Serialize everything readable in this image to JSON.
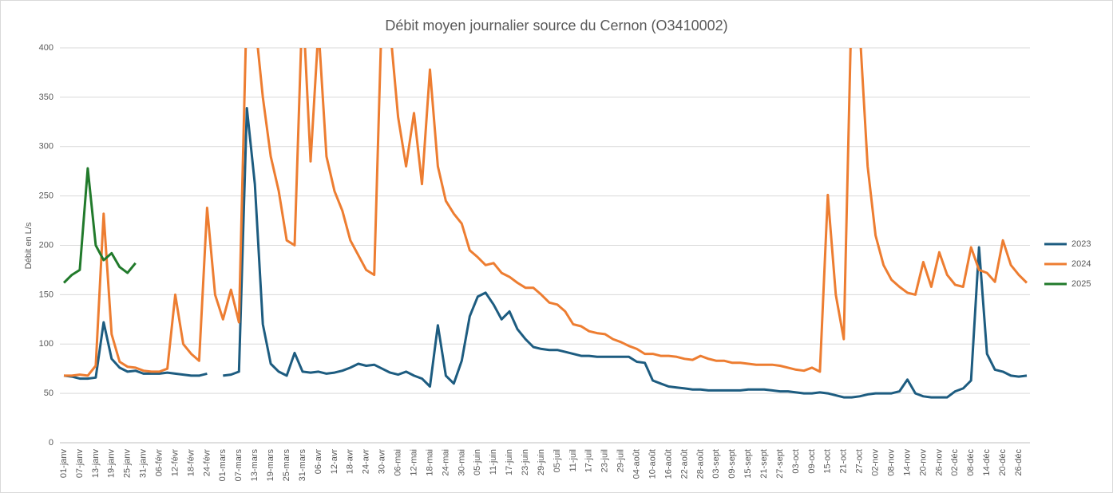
{
  "chart_data": {
    "type": "line",
    "title": "Débit moyen journalier source du Cernon (O3410002)",
    "y_label": "Débit en L/s",
    "categories": [
      "01-janv",
      null,
      "07-janv",
      null,
      "13-janv",
      null,
      "19-janv",
      null,
      "25-janv",
      null,
      "31-janv",
      null,
      "06-févr",
      null,
      "12-févr",
      null,
      "18-févr",
      null,
      "24-févr",
      null,
      "01-mars",
      null,
      "07-mars",
      null,
      "13-mars",
      null,
      "19-mars",
      null,
      "25-mars",
      null,
      "31-mars",
      null,
      "06-avr",
      null,
      "12-avr",
      null,
      "18-avr",
      null,
      "24-avr",
      null,
      "30-avr",
      null,
      "06-mai",
      null,
      "12-mai",
      null,
      "18-mai",
      null,
      "24-mai",
      null,
      "30-mai",
      null,
      "05-juin",
      null,
      "11-juin",
      null,
      "17-juin",
      null,
      "23-juin",
      null,
      "29-juin",
      null,
      "05-juil",
      null,
      "11-juil",
      null,
      "17-juil",
      null,
      "23-juil",
      null,
      "29-juil",
      null,
      "04-août",
      null,
      "10-août",
      null,
      "16-août",
      null,
      "22-août",
      null,
      "28-août",
      null,
      "03-sept",
      null,
      "09-sept",
      null,
      "15-sept",
      null,
      "21-sept",
      null,
      "27-sept",
      null,
      "03-oct",
      null,
      "09-oct",
      null,
      "15-oct",
      null,
      "21-oct",
      null,
      "27-oct",
      null,
      "02-nov",
      null,
      "08-nov",
      null,
      "14-nov",
      null,
      "20-nov",
      null,
      "26-nov",
      null,
      "02-déc",
      null,
      "08-déc",
      null,
      "14-déc",
      null,
      "20-déc",
      null,
      "26-déc",
      null
    ],
    "series": [
      {
        "name": "2023",
        "color": "#1d5c80",
        "values": [
          68,
          67,
          65,
          65,
          66,
          122,
          85,
          76,
          72,
          73,
          70,
          70,
          70,
          71,
          70,
          69,
          68,
          68,
          70,
          null,
          68,
          69,
          72,
          339,
          262,
          120,
          80,
          72,
          68,
          91,
          72,
          71,
          72,
          70,
          71,
          73,
          76,
          80,
          78,
          79,
          75,
          71,
          69,
          72,
          68,
          65,
          57,
          119,
          68,
          60,
          83,
          128,
          148,
          152,
          140,
          125,
          133,
          115,
          105,
          97,
          95,
          94,
          94,
          92,
          90,
          88,
          88,
          87,
          87,
          87,
          87,
          87,
          82,
          81,
          63,
          60,
          57,
          56,
          55,
          54,
          54,
          53,
          53,
          53,
          53,
          53,
          54,
          54,
          54,
          53,
          52,
          52,
          51,
          50,
          50,
          51,
          50,
          48,
          46,
          46,
          47,
          49,
          50,
          50,
          50,
          52,
          64,
          50,
          47,
          46,
          46,
          46,
          52,
          55,
          63,
          198,
          90,
          74,
          72,
          68,
          67,
          68
        ]
      },
      {
        "name": "2024",
        "color": "#ed7d31",
        "values": [
          68,
          68,
          69,
          68,
          78,
          232,
          110,
          82,
          77,
          76,
          73,
          72,
          72,
          75,
          150,
          100,
          90,
          83,
          238,
          150,
          125,
          155,
          122,
          450,
          430,
          350,
          290,
          255,
          205,
          200,
          450,
          285,
          420,
          290,
          255,
          235,
          205,
          190,
          175,
          170,
          450,
          420,
          330,
          280,
          334,
          262,
          378,
          280,
          245,
          232,
          222,
          195,
          188,
          180,
          182,
          172,
          168,
          162,
          157,
          157,
          150,
          142,
          140,
          133,
          120,
          118,
          113,
          111,
          110,
          105,
          102,
          98,
          95,
          90,
          90,
          88,
          88,
          87,
          85,
          84,
          88,
          85,
          83,
          83,
          81,
          81,
          80,
          79,
          79,
          79,
          78,
          76,
          74,
          73,
          76,
          72,
          251,
          150,
          105,
          450,
          420,
          280,
          210,
          180,
          165,
          158,
          152,
          150,
          183,
          158,
          193,
          170,
          160,
          158,
          198,
          175,
          172,
          163,
          205,
          180,
          170,
          162
        ]
      },
      {
        "name": "2025",
        "color": "#217a2b",
        "values": [
          162,
          170,
          175,
          278,
          200,
          185,
          192,
          178,
          172,
          182,
          null,
          null,
          null,
          null,
          null,
          null,
          null,
          null,
          null,
          null,
          null,
          null,
          null,
          null,
          null,
          null,
          null,
          null,
          null,
          null,
          null,
          null,
          null,
          null,
          null,
          null,
          null,
          null,
          null,
          null,
          null,
          null,
          null,
          null,
          null,
          null,
          null,
          null,
          null,
          null,
          null,
          null,
          null,
          null,
          null,
          null,
          null,
          null,
          null,
          null,
          null,
          null,
          null,
          null,
          null,
          null,
          null,
          null,
          null,
          null,
          null,
          null,
          null,
          null,
          null,
          null,
          null,
          null,
          null,
          null,
          null,
          null,
          null,
          null,
          null,
          null,
          null,
          null,
          null,
          null,
          null,
          null,
          null,
          null,
          null,
          null,
          null,
          null,
          null,
          null,
          null,
          null,
          null,
          null,
          null,
          null,
          null,
          null,
          null,
          null,
          null,
          null,
          null,
          null,
          null,
          null,
          null,
          null,
          null,
          null,
          null,
          null
        ]
      }
    ],
    "ylim": [
      0,
      400
    ],
    "yticks": [
      0,
      50,
      100,
      150,
      200,
      250,
      300,
      350,
      400
    ],
    "grid": true,
    "legend": "right"
  }
}
